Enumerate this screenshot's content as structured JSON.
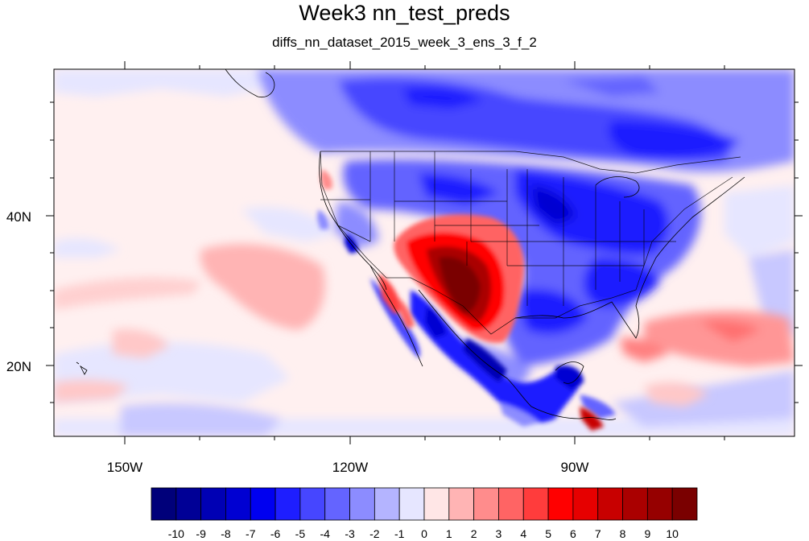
{
  "title": "Week3 nn_test_preds",
  "subtitle": "diffs_nn_dataset_2015_week_3_ens_3_f_2",
  "lon_labels": [
    "150W",
    "120W",
    "90W"
  ],
  "lat_labels": [
    "40N",
    "20N"
  ],
  "colorbar": {
    "tick_labels": [
      "-10",
      "-9",
      "-8",
      "-7",
      "-6",
      "-5",
      "-4",
      "-3",
      "-2",
      "-1",
      "0",
      "1",
      "2",
      "3",
      "4",
      "5",
      "6",
      "7",
      "8",
      "9",
      "10"
    ],
    "colors": [
      "#00007a",
      "#000096",
      "#0000b4",
      "#0000d2",
      "#0000f0",
      "#1e1eff",
      "#4646ff",
      "#6464ff",
      "#8c8cff",
      "#b4b4ff",
      "#e6e6ff",
      "#ffe6e6",
      "#ffb4b4",
      "#ff8c8c",
      "#ff6464",
      "#ff3c3c",
      "#ff0000",
      "#e60000",
      "#c80000",
      "#aa0000",
      "#960000",
      "#7a0000"
    ]
  },
  "map_colors": {
    "ocean_bg": "#fff0f0",
    "coast": "#000000"
  }
}
